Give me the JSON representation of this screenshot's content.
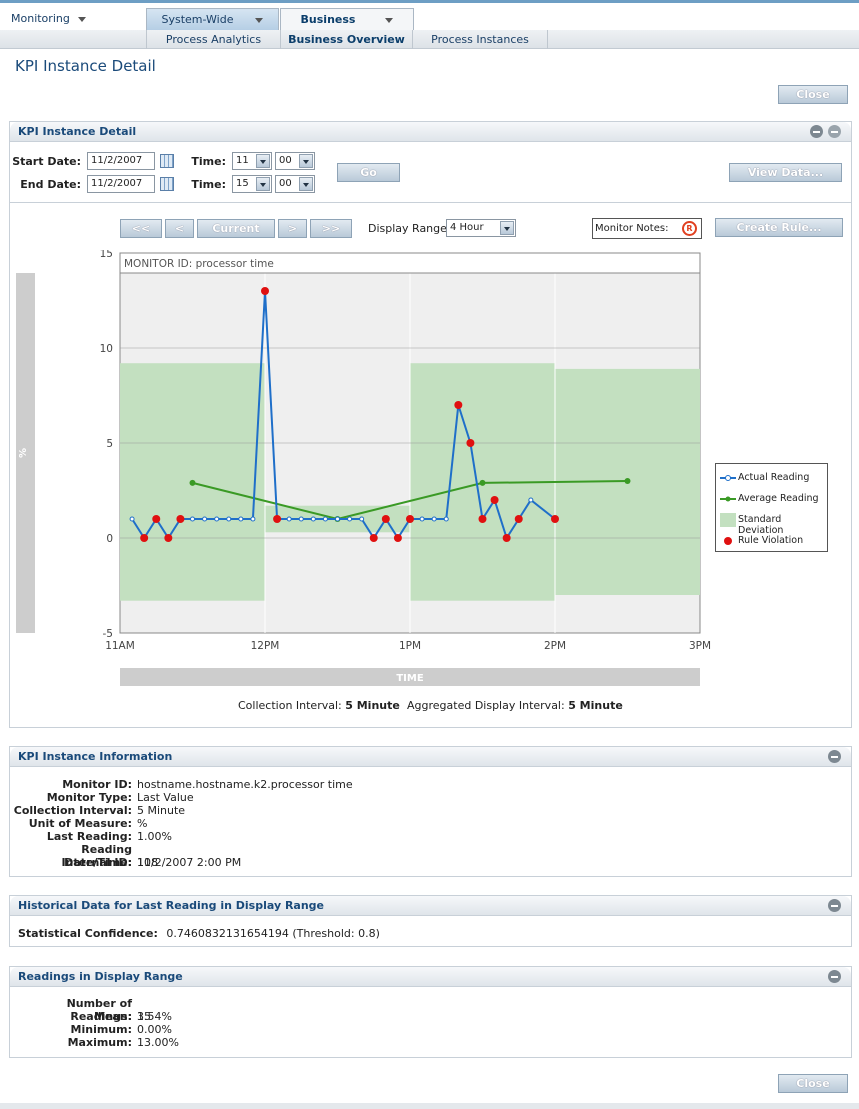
{
  "nav": {
    "monitoring": "Monitoring",
    "tabs": [
      "System-Wide",
      "Business"
    ],
    "subtabs": [
      "Process Analytics",
      "Business Overview",
      "Process Instances"
    ]
  },
  "page": {
    "title": "KPI Instance Detail",
    "close_label": "Close"
  },
  "detail_panel": {
    "title": "KPI Instance Detail",
    "start_date_label": "Start Date:",
    "start_date": "11/2/2007",
    "end_date_label": "End Date:",
    "end_date": "11/2/2007",
    "time_label": "Time:",
    "start_hour": "11",
    "start_min": "00",
    "end_hour": "15",
    "end_min": "00",
    "go_label": "Go",
    "view_data_label": "View Data...",
    "nav_first": "<<",
    "nav_prev": "<",
    "nav_current": "Current",
    "nav_next": ">",
    "nav_last": ">>",
    "display_range_label": "Display Range:",
    "display_range": "4 Hour",
    "monitor_notes_label": "Monitor Notes:",
    "create_rule_label": "Create Rule...",
    "collection_interval_label": "Collection Interval:",
    "collection_interval": "5 Minute",
    "agg_interval_label": "Aggregated Display Interval:",
    "agg_interval": "5 Minute"
  },
  "chart_data": {
    "type": "line",
    "title": "MONITOR ID: processor time",
    "xlabel": "TIME",
    "ylabel": "%",
    "ylim": [
      -5,
      15
    ],
    "yticks": [
      "15",
      "10",
      "5",
      "0",
      "-5"
    ],
    "xticks": [
      "11AM",
      "12PM",
      "1PM",
      "2PM",
      "3PM"
    ],
    "xlim_minutes": [
      0,
      240
    ],
    "legend": [
      "Actual Reading",
      "Average Reading",
      "Standard Deviation",
      "Rule Violation"
    ],
    "legend_position": "right",
    "colors": {
      "actual": "#1f6fc9",
      "average": "#3a9a25",
      "stddev": "#c3e0c0",
      "violation": "#e01010"
    },
    "std_bands": [
      {
        "x0": 0,
        "x1": 60,
        "low": -3.3,
        "high": 9.2
      },
      {
        "x0": 60,
        "x1": 120,
        "low": 0.3,
        "high": 1.7
      },
      {
        "x0": 120,
        "x1": 180,
        "low": -3.3,
        "high": 9.2
      },
      {
        "x0": 180,
        "x1": 240,
        "low": -3.0,
        "high": 8.9
      }
    ],
    "average": [
      [
        30,
        2.9
      ],
      [
        90,
        1.0
      ],
      [
        150,
        2.9
      ],
      [
        210,
        3.0
      ]
    ],
    "actual": [
      [
        5,
        1
      ],
      [
        10,
        0
      ],
      [
        15,
        1
      ],
      [
        20,
        0
      ],
      [
        25,
        1
      ],
      [
        30,
        1
      ],
      [
        35,
        1
      ],
      [
        40,
        1
      ],
      [
        45,
        1
      ],
      [
        50,
        1
      ],
      [
        55,
        1
      ],
      [
        60,
        13
      ],
      [
        65,
        1
      ],
      [
        70,
        1
      ],
      [
        75,
        1
      ],
      [
        80,
        1
      ],
      [
        85,
        1
      ],
      [
        90,
        1
      ],
      [
        95,
        1
      ],
      [
        100,
        1
      ],
      [
        105,
        0
      ],
      [
        110,
        1
      ],
      [
        115,
        0
      ],
      [
        120,
        1
      ],
      [
        125,
        1
      ],
      [
        130,
        1
      ],
      [
        135,
        1
      ],
      [
        140,
        7
      ],
      [
        145,
        5
      ],
      [
        150,
        1
      ],
      [
        155,
        2
      ],
      [
        160,
        0
      ],
      [
        165,
        1
      ],
      [
        170,
        2
      ],
      [
        180,
        1
      ]
    ],
    "violations": [
      [
        10,
        0
      ],
      [
        15,
        1
      ],
      [
        20,
        0
      ],
      [
        25,
        1
      ],
      [
        60,
        13
      ],
      [
        65,
        1
      ],
      [
        105,
        0
      ],
      [
        110,
        1
      ],
      [
        115,
        0
      ],
      [
        120,
        1
      ],
      [
        140,
        7
      ],
      [
        145,
        5
      ],
      [
        150,
        1
      ],
      [
        155,
        2
      ],
      [
        160,
        0
      ],
      [
        165,
        1
      ],
      [
        180,
        1
      ]
    ]
  },
  "info_panel": {
    "title": "KPI Instance Information",
    "rows": [
      {
        "k": "Monitor ID:",
        "v": "hostname.hostname.k2.processor time"
      },
      {
        "k": "Monitor Type:",
        "v": "Last Value"
      },
      {
        "k": "Collection Interval:",
        "v": "5 Minute"
      },
      {
        "k": "Unit of Measure:",
        "v": "%"
      },
      {
        "k": "Last Reading:",
        "v": "1.00%"
      },
      {
        "k": "Reading Date/Time:",
        "v": "11/2/2007 2:00 PM"
      },
      {
        "k": "Internal ID:",
        "v": "108"
      }
    ]
  },
  "hist_panel": {
    "title": "Historical Data for Last Reading in Display Range",
    "k": "Statistical Confidence:",
    "v": "0.7460832131654194 (Threshold: 0.8)"
  },
  "readings_panel": {
    "title": "Readings in Display Range",
    "rows": [
      {
        "k": "Number of Readings:",
        "v": "35"
      },
      {
        "k": "Mean:",
        "v": "1.54%"
      },
      {
        "k": "Minimum:",
        "v": "0.00%"
      },
      {
        "k": "Maximum:",
        "v": "13.00%"
      }
    ]
  }
}
